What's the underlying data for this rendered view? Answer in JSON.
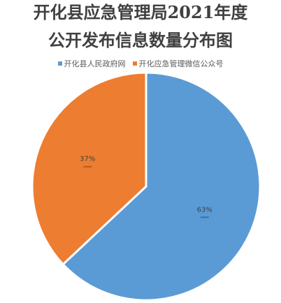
{
  "title": {
    "line1": "开化县应急管理局2021年度",
    "line2": "公开发布信息数量分布图"
  },
  "chart_data": {
    "type": "pie",
    "categories": [
      "开化县人民政府网",
      "开化应急管理微信公众号"
    ],
    "values": [
      63,
      37
    ],
    "labels": [
      "63%",
      "37%"
    ],
    "colors": [
      "#5b9bd5",
      "#ed7d31"
    ],
    "legend_position": "top"
  }
}
